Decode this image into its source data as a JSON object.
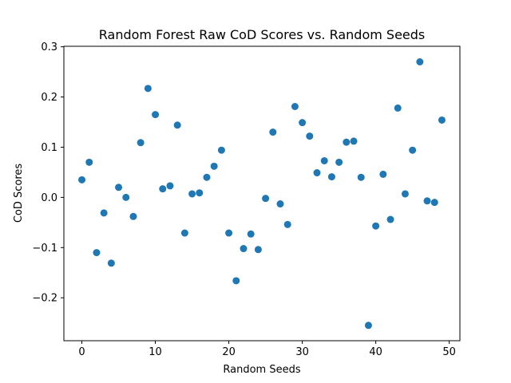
{
  "chart_data": {
    "type": "scatter",
    "title": "Random Forest Raw CoD Scores vs. Random Seeds",
    "xlabel": "Random Seeds",
    "ylabel": "CoD Scores",
    "xlim": [
      -2.45,
      51.45
    ],
    "ylim": [
      -0.2855,
      0.301
    ],
    "grid": false,
    "x_ticks": [
      0,
      10,
      20,
      30,
      40,
      50
    ],
    "x_tick_labels": [
      "0",
      "10",
      "20",
      "30",
      "40",
      "50"
    ],
    "y_ticks": [
      -0.2,
      -0.1,
      0.0,
      0.1,
      0.2,
      0.3
    ],
    "y_tick_labels": [
      "−0.2",
      "−0.1",
      "0.0",
      "0.1",
      "0.2",
      "0.3"
    ],
    "marker_color": "#1f77b4",
    "x": [
      0,
      1,
      2,
      3,
      4,
      5,
      6,
      7,
      8,
      9,
      10,
      11,
      12,
      13,
      14,
      15,
      16,
      17,
      18,
      19,
      20,
      21,
      22,
      23,
      24,
      25,
      26,
      27,
      28,
      29,
      30,
      31,
      32,
      33,
      34,
      35,
      36,
      37,
      38,
      39,
      40,
      41,
      42,
      43,
      44,
      45,
      46,
      47,
      48,
      49
    ],
    "y": [
      0.035,
      0.07,
      -0.11,
      -0.031,
      -0.131,
      0.02,
      0.0,
      -0.038,
      0.109,
      0.217,
      0.165,
      0.017,
      0.023,
      0.144,
      -0.071,
      0.007,
      0.009,
      0.04,
      0.062,
      0.094,
      -0.071,
      -0.166,
      -0.102,
      -0.073,
      -0.104,
      -0.002,
      0.13,
      -0.013,
      -0.054,
      0.181,
      0.149,
      0.122,
      0.049,
      0.073,
      0.041,
      0.07,
      0.11,
      0.112,
      0.04,
      -0.255,
      -0.057,
      0.046,
      -0.044,
      0.178,
      0.007,
      0.094,
      0.27,
      -0.007,
      -0.01,
      0.154
    ]
  }
}
